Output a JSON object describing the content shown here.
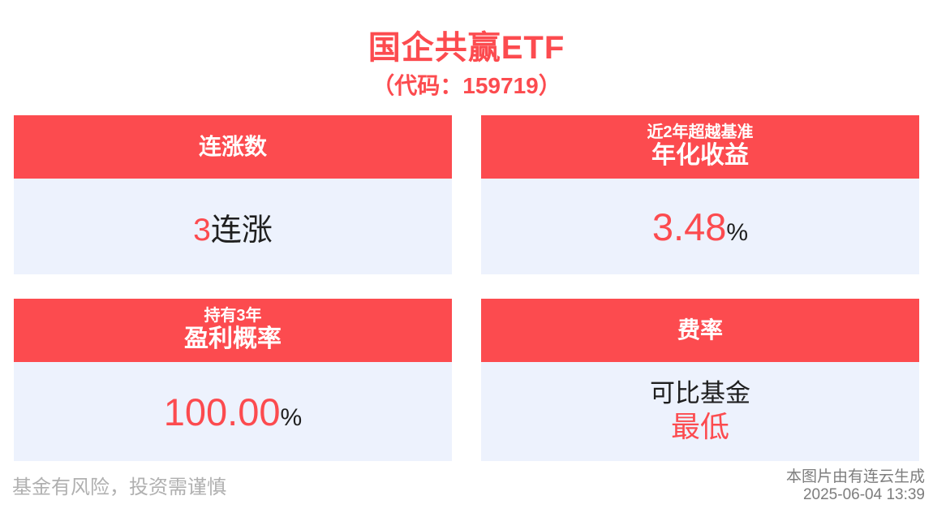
{
  "page": {
    "title": "国企共赢ETF",
    "subtitle": "（代码：159719）"
  },
  "colors": {
    "accent_red": "#fc4b4f",
    "card_body_bg": "#edf2fd",
    "text_black": "#1f1f1f",
    "footer_left_gray": "#b0b0b0",
    "footer_right_gray": "#7d7d7d"
  },
  "cards": [
    {
      "name": "consecutive-gains",
      "header_main": "连涨数",
      "value": "3",
      "value_suffix": "连涨"
    },
    {
      "name": "annualized-return",
      "header_small": "近2年超越基准",
      "header_main": "年化收益",
      "value": "3.48",
      "value_suffix": "%"
    },
    {
      "name": "profit-probability",
      "header_small": "持有3年",
      "header_main": "盈利概率",
      "value": "100.00",
      "value_suffix": "%"
    },
    {
      "name": "fee-rate",
      "header_main": "费率",
      "value_note": "可比基金",
      "value": "最低"
    }
  ],
  "footer": {
    "risk_warning": "基金有风险，投资需谨慎",
    "generator": "本图片由有连云生成",
    "timestamp": "2025-06-04 13:39"
  }
}
